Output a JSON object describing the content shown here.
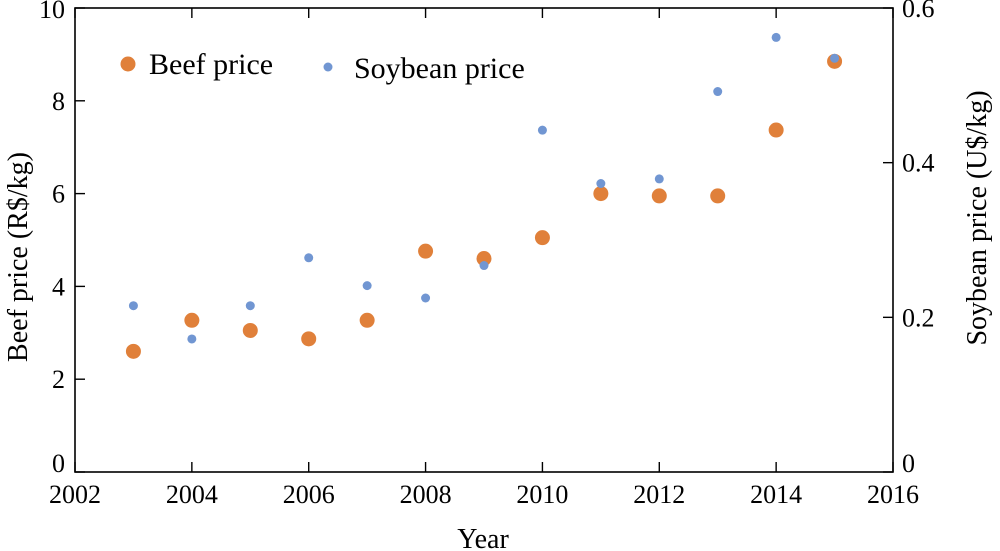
{
  "chart_data": {
    "type": "scatter",
    "xlabel": "Year",
    "ylabel_left": "Beef price (R$/kg)",
    "ylabel_right": "Soybean price (U$/kg)",
    "xlim": [
      2002,
      2016
    ],
    "ylim_left": [
      0,
      10
    ],
    "ylim_right": [
      0,
      0.6
    ],
    "xticks": [
      2002,
      2004,
      2006,
      2008,
      2010,
      2012,
      2014,
      2016
    ],
    "xtick_labels": [
      "2002",
      "2004",
      "2006",
      "2008",
      "2010",
      "2012",
      "2014",
      "2016"
    ],
    "yticks_left": [
      0,
      2,
      4,
      6,
      8,
      10
    ],
    "ytick_labels_left": [
      "0",
      "2",
      "4",
      "6",
      "8",
      "10"
    ],
    "yticks_right": [
      0,
      0.2,
      0.4,
      0.6
    ],
    "ytick_labels_right": [
      "0",
      "0.2",
      "0.4",
      "0.6"
    ],
    "grid": false,
    "legend_position": "top-left",
    "series": [
      {
        "name": "Beef price",
        "axis": "left",
        "color": "#E0803A",
        "x": [
          2003,
          2004,
          2005,
          2006,
          2007,
          2008,
          2009,
          2010,
          2011,
          2012,
          2013,
          2014,
          2015
        ],
        "y": [
          2.6,
          3.27,
          3.05,
          2.87,
          3.27,
          4.76,
          4.6,
          5.05,
          6.0,
          5.95,
          5.95,
          7.37,
          8.85
        ]
      },
      {
        "name": "Soybean price",
        "axis": "right",
        "color": "#7196D2",
        "x": [
          2003,
          2004,
          2005,
          2006,
          2007,
          2008,
          2009,
          2010,
          2011,
          2012,
          2013,
          2014,
          2015
        ],
        "y": [
          0.215,
          0.172,
          0.215,
          0.277,
          0.241,
          0.225,
          0.267,
          0.442,
          0.373,
          0.379,
          0.492,
          0.562,
          0.535
        ]
      }
    ]
  }
}
